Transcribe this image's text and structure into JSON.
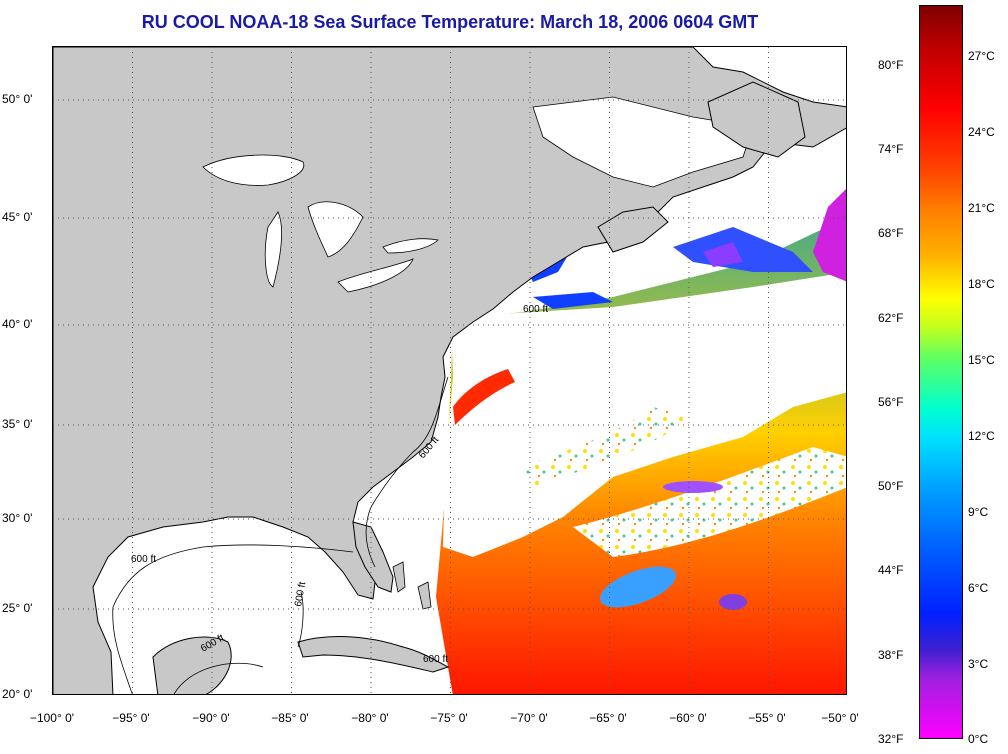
{
  "title": "RU COOL  NOAA-18  Sea Surface Temperature:  March 18, 2006 0604 GMT",
  "lon_labels": [
    "−100° 0'",
    "−95° 0'",
    "−90° 0'",
    "−85° 0'",
    "−80° 0'",
    "−75° 0'",
    "−70° 0'",
    "−65° 0'",
    "−60° 0'",
    "−55° 0'",
    "−50° 0'"
  ],
  "lat_labels": [
    "50° 0'",
    "45° 0'",
    "40° 0'",
    "35° 0'",
    "30° 0'",
    "25° 0'",
    "20° 0'"
  ],
  "colorbar": {
    "fahrenheit": [
      "80°F",
      "74°F",
      "68°F",
      "62°F",
      "56°F",
      "50°F",
      "44°F",
      "38°F",
      "32°F"
    ],
    "celsius": [
      "27°C",
      "24°C",
      "21°C",
      "18°C",
      "15°C",
      "12°C",
      "9°C",
      "6°C",
      "3°C",
      "0°C"
    ]
  },
  "contour_labels": [
    "600 ft",
    "600 ft",
    "600 ft",
    "600 ft",
    "600 ft",
    "600 ft"
  ],
  "colors": {
    "land": "#c8c8c8",
    "title": "#1a1aa6",
    "cloud": "#ffffff",
    "ocean_warm": "#ff3000",
    "ocean_cool": "#ffff00"
  }
}
